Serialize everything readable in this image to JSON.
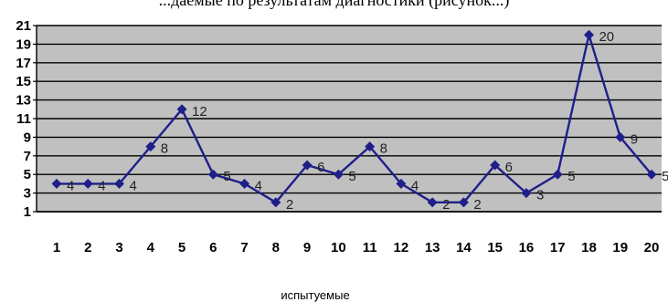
{
  "caption_fragment": "...даемые по результатам диагностики (рисунок...)",
  "chart_data": {
    "type": "line",
    "categories": [
      "1",
      "2",
      "3",
      "4",
      "5",
      "6",
      "7",
      "8",
      "9",
      "10",
      "11",
      "12",
      "13",
      "14",
      "15",
      "16",
      "17",
      "18",
      "19",
      "20"
    ],
    "values": [
      4,
      4,
      4,
      8,
      12,
      5,
      4,
      2,
      6,
      5,
      8,
      4,
      2,
      2,
      6,
      3,
      5,
      20,
      9,
      5
    ],
    "data_labels": [
      "4",
      "4",
      "4",
      "8",
      "12",
      "5",
      "4",
      "2",
      "6",
      "5",
      "8",
      "4",
      "2",
      "2",
      "6",
      "3",
      "5",
      "20",
      "9",
      "5"
    ],
    "y_ticks": [
      1,
      3,
      5,
      7,
      9,
      11,
      13,
      15,
      17,
      19,
      21
    ],
    "ylim": [
      1,
      21
    ],
    "xlabel": "испытуемые",
    "ylabel": "",
    "title": "",
    "grid": true,
    "legend": "none",
    "colors": {
      "line": "#1f1f8a",
      "marker": "#1f1f8a",
      "plot_bg": "#c0c0c0",
      "grid": "#000000"
    }
  }
}
